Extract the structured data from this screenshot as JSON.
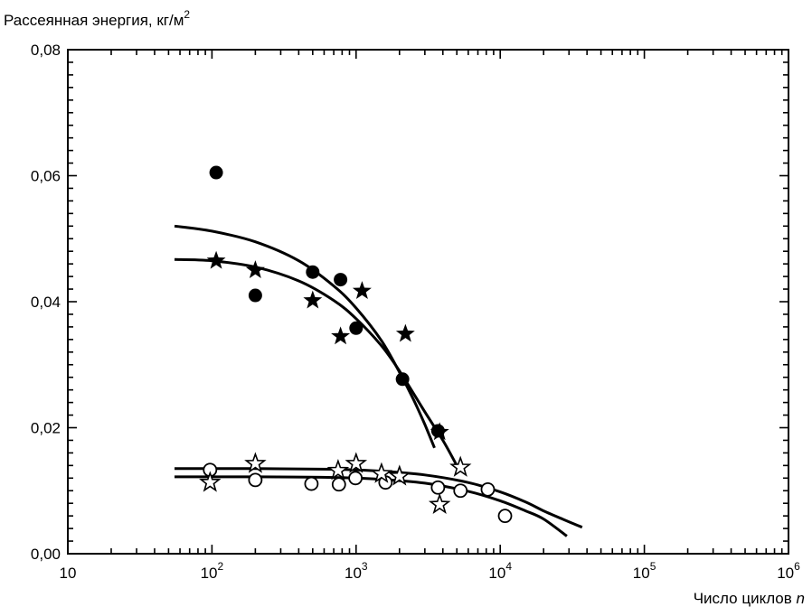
{
  "chart_data": {
    "type": "scatter",
    "title": "",
    "ylabel": "Рассеянная энергия, кг/м",
    "ylabel_superscript": "2",
    "xlabel": "Число циклов",
    "xlabel_variable": "n",
    "x_scale": "log",
    "xlim": [
      10,
      1000000
    ],
    "ylim": [
      0,
      0.08
    ],
    "grid": false,
    "legend": "none",
    "x_tick_labels": [
      {
        "value": 10,
        "base": "10",
        "exp": ""
      },
      {
        "value": 100,
        "base": "10",
        "exp": "2"
      },
      {
        "value": 1000,
        "base": "10",
        "exp": "3"
      },
      {
        "value": 10000,
        "base": "10",
        "exp": "4"
      },
      {
        "value": 100000,
        "base": "10",
        "exp": "5"
      },
      {
        "value": 1000000,
        "base": "10",
        "exp": "6"
      }
    ],
    "y_tick_labels": [
      {
        "value": 0,
        "text": "0,00"
      },
      {
        "value": 0.02,
        "text": "0,02"
      },
      {
        "value": 0.04,
        "text": "0,04"
      },
      {
        "value": 0.06,
        "text": "0,06"
      },
      {
        "value": 0.08,
        "text": "0,08"
      }
    ],
    "series": [
      {
        "marker": "filled-circle",
        "points": [
          [
            107,
            0.0605
          ],
          [
            200,
            0.041
          ],
          [
            500,
            0.0447
          ],
          [
            780,
            0.0435
          ],
          [
            1000,
            0.0358
          ],
          [
            2100,
            0.0277
          ],
          [
            3700,
            0.0195
          ]
        ]
      },
      {
        "marker": "filled-star",
        "points": [
          [
            107,
            0.0465
          ],
          [
            200,
            0.045
          ],
          [
            500,
            0.0402
          ],
          [
            780,
            0.0345
          ],
          [
            1100,
            0.0417
          ],
          [
            2200,
            0.0349
          ],
          [
            3800,
            0.0193
          ]
        ]
      },
      {
        "marker": "open-circle",
        "points": [
          [
            97,
            0.0133
          ],
          [
            200,
            0.0117
          ],
          [
            490,
            0.0111
          ],
          [
            760,
            0.011
          ],
          [
            990,
            0.012
          ],
          [
            1600,
            0.0113
          ],
          [
            3700,
            0.0105
          ],
          [
            5300,
            0.01
          ],
          [
            8200,
            0.0102
          ],
          [
            10800,
            0.006
          ]
        ]
      },
      {
        "marker": "open-star",
        "points": [
          [
            97,
            0.0113
          ],
          [
            200,
            0.0143
          ],
          [
            750,
            0.0132
          ],
          [
            1000,
            0.0143
          ],
          [
            1500,
            0.0127
          ],
          [
            2000,
            0.0123
          ],
          [
            3800,
            0.0078
          ],
          [
            5300,
            0.0137
          ]
        ]
      }
    ],
    "curves": [
      {
        "points": [
          [
            55,
            0.052
          ],
          [
            100,
            0.0512
          ],
          [
            200,
            0.0495
          ],
          [
            400,
            0.0465
          ],
          [
            700,
            0.0425
          ],
          [
            1000,
            0.039
          ],
          [
            1500,
            0.0338
          ],
          [
            2000,
            0.0288
          ],
          [
            2500,
            0.0245
          ],
          [
            3000,
            0.0205
          ],
          [
            3500,
            0.0168
          ]
        ]
      },
      {
        "points": [
          [
            55,
            0.0467
          ],
          [
            100,
            0.0465
          ],
          [
            200,
            0.0455
          ],
          [
            400,
            0.0433
          ],
          [
            700,
            0.0402
          ],
          [
            1000,
            0.0373
          ],
          [
            1500,
            0.033
          ],
          [
            2000,
            0.029
          ],
          [
            3000,
            0.0225
          ],
          [
            4000,
            0.018
          ],
          [
            5000,
            0.014
          ]
        ]
      },
      {
        "points": [
          [
            55,
            0.0135
          ],
          [
            200,
            0.0135
          ],
          [
            700,
            0.0134
          ],
          [
            1500,
            0.0131
          ],
          [
            3000,
            0.0125
          ],
          [
            6000,
            0.0113
          ],
          [
            10000,
            0.0098
          ],
          [
            15000,
            0.0082
          ],
          [
            20000,
            0.0068
          ],
          [
            27000,
            0.0055
          ],
          [
            37000,
            0.0042
          ]
        ]
      },
      {
        "points": [
          [
            55,
            0.0122
          ],
          [
            200,
            0.0122
          ],
          [
            700,
            0.0121
          ],
          [
            1500,
            0.0118
          ],
          [
            3000,
            0.0112
          ],
          [
            6000,
            0.0099
          ],
          [
            10000,
            0.0084
          ],
          [
            15000,
            0.0068
          ],
          [
            20000,
            0.0055
          ],
          [
            29000,
            0.0028
          ]
        ]
      }
    ]
  }
}
